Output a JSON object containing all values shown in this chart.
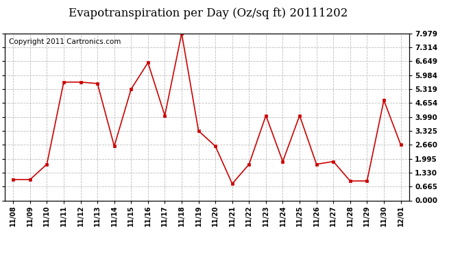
{
  "title": "Evapotranspiration per Day (Oz/sq ft) 20111202",
  "copyright": "Copyright 2011 Cartronics.com",
  "x_labels": [
    "11/08",
    "11/09",
    "11/10",
    "11/11",
    "11/12",
    "11/13",
    "11/14",
    "11/15",
    "11/16",
    "11/17",
    "11/18",
    "11/19",
    "11/20",
    "11/21",
    "11/22",
    "11/23",
    "11/24",
    "11/25",
    "11/26",
    "11/27",
    "11/28",
    "11/29",
    "11/30",
    "12/01"
  ],
  "y_values": [
    0.998,
    0.998,
    1.729,
    5.653,
    5.653,
    5.586,
    2.594,
    5.319,
    6.583,
    4.057,
    7.979,
    3.325,
    2.593,
    0.798,
    1.729,
    4.057,
    1.862,
    4.057,
    1.729,
    1.862,
    0.931,
    0.931,
    4.787,
    2.66
  ],
  "yticks": [
    0.0,
    0.665,
    1.33,
    1.995,
    2.66,
    3.325,
    3.99,
    4.654,
    5.319,
    5.984,
    6.649,
    7.314,
    7.979
  ],
  "ylim": [
    0.0,
    7.979
  ],
  "line_color": "#cc0000",
  "marker_color": "#cc0000",
  "bg_color": "#ffffff",
  "grid_color": "#bbbbbb",
  "title_fontsize": 12,
  "copyright_fontsize": 7.5
}
